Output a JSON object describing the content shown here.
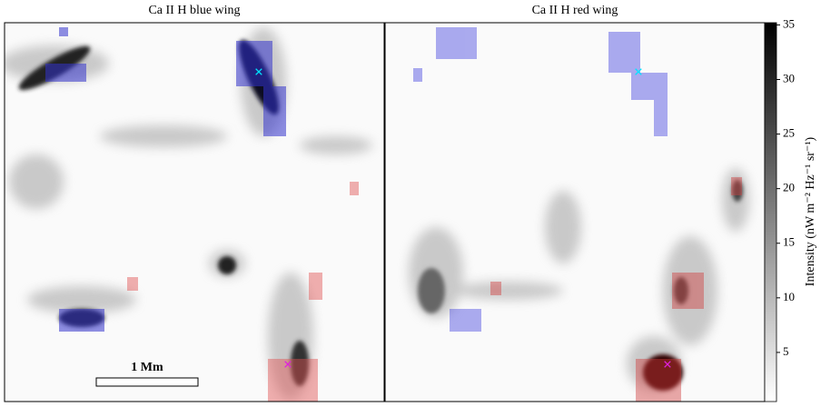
{
  "chart_data": {
    "type": "image",
    "titles": [
      "Ca II H blue wing",
      "Ca II H red wing"
    ],
    "scale_bar_label": "1 Mm",
    "colorbar_label": "Intensity (nW m⁻² Hz⁻¹ sr⁻¹)",
    "clim": [
      0.5,
      35.2
    ],
    "cticks": [
      5,
      10,
      15,
      20,
      25,
      30,
      35
    ]
  }
}
